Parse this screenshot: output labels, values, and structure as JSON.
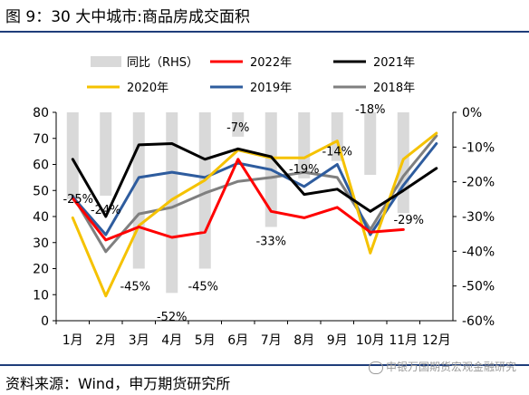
{
  "title": "图 9：30 大中城市:商品房成交面积",
  "source": "资料来源：Wind，申万期货研究所",
  "watermark": "申银万国期货宏观金融研究",
  "chart_data": {
    "type": "line",
    "categories": [
      "1月",
      "2月",
      "3月",
      "4月",
      "5月",
      "6月",
      "7月",
      "8月",
      "9月",
      "10月",
      "11月",
      "12月"
    ],
    "left_axis": {
      "min": 0,
      "max": 80,
      "ticks": [
        0,
        10,
        20,
        30,
        40,
        50,
        60,
        70,
        80
      ]
    },
    "right_axis": {
      "min": -60,
      "max": 0,
      "ticks": [
        0,
        -10,
        -20,
        -30,
        -40,
        -50,
        -60
      ],
      "tick_labels": [
        "0%",
        "-10%",
        "-20%",
        "-30%",
        "-40%",
        "-50%",
        "-60%"
      ]
    },
    "bars": {
      "name": "同比（RHS）",
      "color": "#d9d9d9",
      "values": [
        -25,
        -24,
        -45,
        -52,
        -45,
        -7,
        -33,
        -19,
        -14,
        -18,
        -29,
        null
      ],
      "labels": [
        "-25%",
        "-24%",
        "-45%",
        "-52%",
        "-45%",
        "-7%",
        "-33%",
        "-19%",
        "-14%",
        "-18%",
        "-29%",
        ""
      ]
    },
    "series": [
      {
        "name": "2022年",
        "color": "#ff0000",
        "values": [
          47,
          31,
          36,
          32,
          34,
          62,
          42,
          39.5,
          43.5,
          34,
          35,
          null
        ]
      },
      {
        "name": "2021年",
        "color": "#000000",
        "values": [
          62,
          40,
          67.5,
          68,
          62,
          66,
          63,
          48.5,
          50.5,
          42,
          50,
          58.5
        ]
      },
      {
        "name": "2020年",
        "color": "#f5c200",
        "values": [
          39.5,
          9.5,
          36.5,
          46.5,
          54,
          65.5,
          62.5,
          62.5,
          69,
          26,
          62,
          72
        ]
      },
      {
        "name": "2019年",
        "color": "#2e5c9e",
        "values": [
          47.5,
          33,
          55,
          57,
          55,
          60.5,
          58,
          51.5,
          60,
          33,
          52,
          68
        ]
      },
      {
        "name": "2018年",
        "color": "#7f7f7f",
        "values": [
          48,
          26.5,
          41,
          43.5,
          49,
          53.5,
          55,
          57,
          55,
          35,
          55.5,
          71
        ]
      }
    ]
  }
}
